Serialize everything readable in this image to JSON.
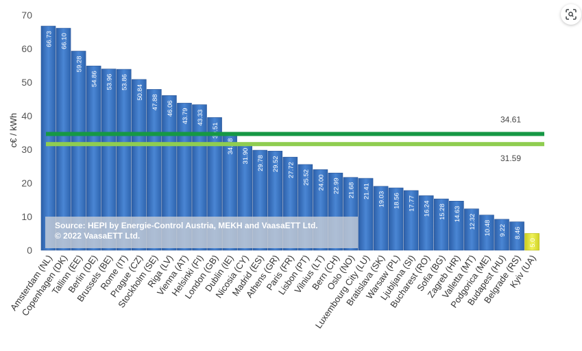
{
  "chart_data": {
    "type": "bar",
    "ylabel": "c€ / kWh",
    "ylim": [
      0,
      70
    ],
    "yticks": [
      0,
      10,
      20,
      30,
      40,
      50,
      60,
      70
    ],
    "categories": [
      "Amsterdam (NL)",
      "Copenhagen (DK)",
      "Tallinn (EE)",
      "Berlin (DE)",
      "Brussels (BE)",
      "Rome (IT)",
      "Prague (CZ)",
      "Stockholm (SE)",
      "Riga (LV)",
      "Vienna (AT)",
      "Helsinki (FI)",
      "London (GB)",
      "Dublin (IE)",
      "Nicosia (CY)",
      "Madrid (ES)",
      "Athens (GR)",
      "Paris (FR)",
      "Lisbon (PT)",
      "Vilnius (LT)",
      "Bern (CH)",
      "Oslo (NO)",
      "Luxembourg City (LU)",
      "Bratislava (SK)",
      "Warsaw (PL)",
      "Ljubljana (SI)",
      "Bucharest (RO)",
      "Sofia (BG)",
      "Zagreb (HR)",
      "Valletta (MT)",
      "Podgorica (ME)",
      "Budapest (HU)",
      "Belgrade (RS)",
      "Kyiv (UA)"
    ],
    "values": [
      66.73,
      66.1,
      59.28,
      54.86,
      53.96,
      53.86,
      50.84,
      47.88,
      46.06,
      43.79,
      43.33,
      39.51,
      34.78,
      31.9,
      29.78,
      29.52,
      27.72,
      25.52,
      24.0,
      22.99,
      21.68,
      21.41,
      19.03,
      18.56,
      17.77,
      16.24,
      15.28,
      14.63,
      12.32,
      10.48,
      9.22,
      8.46,
      5.0
    ],
    "value_labels": [
      "66.73",
      "66.10",
      "59.28",
      "54.86",
      "53.96",
      "53.86",
      "50.84",
      "47.88",
      "46.06",
      "43.79",
      "43.33",
      "39.51",
      "34.78",
      "31.90",
      "29.78",
      "29.52",
      "27.72",
      "25.52",
      "24.00",
      "22.99",
      "21.68",
      "21.41",
      "19.03",
      "18.56",
      "17.77",
      "16.24",
      "15.28",
      "14.63",
      "12.32",
      "10.48",
      "9.22",
      "8.46",
      "5.0"
    ],
    "reference_lines": [
      {
        "value": 34.61,
        "label": "34.61",
        "color": "#169845"
      },
      {
        "value": 31.59,
        "label": "31.59",
        "color": "#8fcd50"
      }
    ],
    "source_note": [
      "Source: HEPI by Energie-Control Austria, MEKH and VaasaETT Ltd.",
      "© 2022 VaasaETT Ltd."
    ],
    "colors": {
      "bar": "#3a72c0",
      "highlight_bar": "#e0e23a",
      "axis_text": "#555555"
    }
  },
  "controls": {
    "lens_button": "visual-search-icon"
  }
}
